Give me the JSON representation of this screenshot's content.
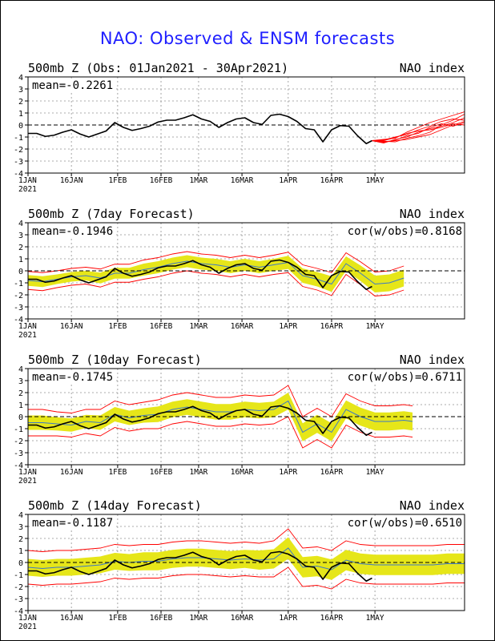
{
  "title": "NAO: Observed & ENSM forecasts",
  "x_ticks": [
    {
      "day": 0,
      "label": "1JAN"
    },
    {
      "day": 15,
      "label": "16JAN"
    },
    {
      "day": 31,
      "label": "1FEB"
    },
    {
      "day": 46,
      "label": "16FEB"
    },
    {
      "day": 59,
      "label": "1MAR"
    },
    {
      "day": 74,
      "label": "16MAR"
    },
    {
      "day": 90,
      "label": "1APR"
    },
    {
      "day": 105,
      "label": "16APR"
    },
    {
      "day": 120,
      "label": "1MAY"
    }
  ],
  "year_label": "2021",
  "y_ticks": [
    4,
    3,
    2,
    1,
    0,
    -1,
    -2,
    -3,
    -4
  ],
  "colors": {
    "title": "#1f1fff",
    "observed": "#000000",
    "forecast_members": "#ff0000",
    "spread_band": "#e6e619",
    "ensemble_mean": "#3c78c8",
    "zero_line": "#000000",
    "grid": "#909090"
  },
  "chart_data": [
    {
      "type": "line",
      "panel_title": "500mb Z (Obs: 01Jan2021 - 30Apr2021)",
      "right_title": "NAO index",
      "mean_label": "mean=-0.2261",
      "cor_label": "",
      "xlim": [
        0,
        151
      ],
      "ylim": [
        -4,
        4
      ],
      "grid": true,
      "series": [
        {
          "name": "",
          "role": "observed",
          "color": "#000000",
          "x": [
            0,
            3,
            6,
            9,
            12,
            15,
            18,
            21,
            24,
            27,
            30,
            33,
            36,
            39,
            42,
            45,
            48,
            51,
            54,
            57,
            60,
            63,
            66,
            69,
            72,
            75,
            78,
            81,
            84,
            87,
            90,
            93,
            96,
            99,
            102,
            105,
            108,
            111,
            114,
            117,
            119
          ],
          "y": [
            -0.7,
            -0.7,
            -0.95,
            -0.85,
            -0.6,
            -0.4,
            -0.75,
            -1.0,
            -0.75,
            -0.5,
            0.2,
            -0.2,
            -0.45,
            -0.3,
            -0.1,
            0.25,
            0.4,
            0.4,
            0.6,
            0.85,
            0.5,
            0.3,
            -0.2,
            0.2,
            0.5,
            0.6,
            0.2,
            0.05,
            0.8,
            0.9,
            0.7,
            0.3,
            -0.3,
            -0.4,
            -1.4,
            -0.4,
            -0.05,
            -0.1,
            -0.9,
            -1.55,
            -1.3
          ]
        }
      ],
      "forecast_ensemble": {
        "x": [
          119,
          123,
          127,
          131,
          135,
          139,
          143,
          147,
          151
        ],
        "members": [
          [
            -1.3,
            -1.5,
            -1.2,
            -1.0,
            -0.6,
            -0.3,
            -0.1,
            0.2,
            0.6
          ],
          [
            -1.3,
            -1.35,
            -1.4,
            -1.1,
            -0.9,
            -0.6,
            0.0,
            0.4,
            0.9
          ],
          [
            -1.3,
            -1.25,
            -1.0,
            -0.8,
            -0.4,
            -0.1,
            0.3,
            0.5,
            0.4
          ],
          [
            -1.3,
            -1.45,
            -1.25,
            -0.9,
            -0.7,
            -0.2,
            0.1,
            -0.1,
            0.2
          ],
          [
            -1.3,
            -1.2,
            -1.1,
            -0.6,
            -0.2,
            0.2,
            0.5,
            0.8,
            1.1
          ],
          [
            -1.3,
            -1.4,
            -1.3,
            -1.2,
            -1.0,
            -0.8,
            -0.4,
            0.0,
            0.3
          ],
          [
            -1.3,
            -1.3,
            -1.05,
            -0.7,
            -0.5,
            -0.4,
            -0.2,
            0.1,
            0.0
          ]
        ]
      }
    },
    {
      "type": "area",
      "panel_title": "500mb Z (7day Forecast)",
      "right_title": "NAO index",
      "mean_label": "mean=-0.1946",
      "cor_label": "cor(w/obs)=0.8168",
      "xlim": [
        0,
        151
      ],
      "ylim": [
        -4,
        4
      ],
      "grid": true,
      "band": {
        "x": [
          0,
          5,
          10,
          15,
          20,
          25,
          30,
          35,
          40,
          45,
          50,
          55,
          60,
          65,
          70,
          75,
          80,
          85,
          90,
          95,
          100,
          105,
          110,
          115,
          120,
          125,
          130
        ],
        "mean": [
          -0.8,
          -0.9,
          -0.7,
          -0.5,
          -0.4,
          -0.6,
          -0.2,
          -0.2,
          0.1,
          0.3,
          0.6,
          0.8,
          0.6,
          0.5,
          0.3,
          0.5,
          0.3,
          0.5,
          0.7,
          -0.4,
          -0.7,
          -1.1,
          0.6,
          -0.2,
          -1.1,
          -1.0,
          -0.6
        ],
        "spread": [
          0.45,
          0.45,
          0.4,
          0.4,
          0.4,
          0.45,
          0.45,
          0.45,
          0.5,
          0.5,
          0.5,
          0.5,
          0.5,
          0.5,
          0.5,
          0.5,
          0.5,
          0.5,
          0.55,
          0.6,
          0.6,
          0.65,
          0.6,
          0.65,
          0.7,
          0.7,
          0.7
        ],
        "outer": [
          0.75,
          0.75,
          0.7,
          0.7,
          0.7,
          0.75,
          0.75,
          0.75,
          0.8,
          0.8,
          0.8,
          0.8,
          0.8,
          0.8,
          0.8,
          0.8,
          0.8,
          0.8,
          0.85,
          0.9,
          0.9,
          0.95,
          0.9,
          0.95,
          1.0,
          1.0,
          1.0
        ]
      },
      "observed": {
        "x": [
          0,
          3,
          6,
          9,
          12,
          15,
          18,
          21,
          24,
          27,
          30,
          33,
          36,
          39,
          42,
          45,
          48,
          51,
          54,
          57,
          60,
          63,
          66,
          69,
          72,
          75,
          78,
          81,
          84,
          87,
          90,
          93,
          96,
          99,
          102,
          105,
          108,
          111,
          114,
          117,
          119
        ],
        "y": [
          -0.7,
          -0.7,
          -0.95,
          -0.85,
          -0.6,
          -0.4,
          -0.75,
          -1.0,
          -0.75,
          -0.5,
          0.2,
          -0.2,
          -0.45,
          -0.3,
          -0.1,
          0.25,
          0.4,
          0.4,
          0.6,
          0.85,
          0.5,
          0.3,
          -0.2,
          0.2,
          0.5,
          0.6,
          0.2,
          0.05,
          0.8,
          0.9,
          0.7,
          0.3,
          -0.3,
          -0.4,
          -1.4,
          -0.4,
          -0.05,
          -0.1,
          -0.9,
          -1.55,
          -1.3
        ]
      }
    },
    {
      "type": "area",
      "panel_title": "500mb Z (10day Forecast)",
      "right_title": "NAO index",
      "mean_label": "mean=-0.1745",
      "cor_label": "cor(w/obs)=0.6711",
      "xlim": [
        0,
        151
      ],
      "ylim": [
        -4,
        4
      ],
      "grid": true,
      "band": {
        "x": [
          0,
          5,
          10,
          15,
          20,
          25,
          30,
          35,
          40,
          45,
          50,
          55,
          60,
          65,
          70,
          75,
          80,
          85,
          90,
          95,
          100,
          105,
          110,
          115,
          120,
          125,
          130,
          133
        ],
        "mean": [
          -0.5,
          -0.5,
          -0.6,
          -0.7,
          -0.4,
          -0.5,
          0.2,
          -0.1,
          0.1,
          0.2,
          0.6,
          0.8,
          0.6,
          0.4,
          0.4,
          0.6,
          0.5,
          0.6,
          1.3,
          -1.3,
          -0.6,
          -1.3,
          0.6,
          0.0,
          -0.4,
          -0.4,
          -0.3,
          -0.4
        ],
        "spread": [
          0.6,
          0.6,
          0.55,
          0.55,
          0.55,
          0.6,
          0.6,
          0.6,
          0.6,
          0.65,
          0.65,
          0.65,
          0.65,
          0.65,
          0.65,
          0.65,
          0.65,
          0.65,
          0.7,
          0.75,
          0.75,
          0.75,
          0.75,
          0.75,
          0.75,
          0.75,
          0.75,
          0.75
        ],
        "outer": [
          1.1,
          1.1,
          1.0,
          1.0,
          1.0,
          1.1,
          1.1,
          1.1,
          1.1,
          1.2,
          1.2,
          1.2,
          1.2,
          1.2,
          1.2,
          1.2,
          1.2,
          1.2,
          1.3,
          1.3,
          1.3,
          1.3,
          1.3,
          1.3,
          1.3,
          1.3,
          1.3,
          1.3
        ]
      },
      "observed": {
        "x": [
          0,
          3,
          6,
          9,
          12,
          15,
          18,
          21,
          24,
          27,
          30,
          33,
          36,
          39,
          42,
          45,
          48,
          51,
          54,
          57,
          60,
          63,
          66,
          69,
          72,
          75,
          78,
          81,
          84,
          87,
          90,
          93,
          96,
          99,
          102,
          105,
          108,
          111,
          114,
          117,
          119
        ],
        "y": [
          -0.7,
          -0.7,
          -0.95,
          -0.85,
          -0.6,
          -0.4,
          -0.75,
          -1.0,
          -0.75,
          -0.5,
          0.2,
          -0.2,
          -0.45,
          -0.3,
          -0.1,
          0.25,
          0.4,
          0.4,
          0.6,
          0.85,
          0.5,
          0.3,
          -0.2,
          0.2,
          0.5,
          0.6,
          0.2,
          0.05,
          0.8,
          0.9,
          0.7,
          0.3,
          -0.3,
          -0.4,
          -1.4,
          -0.4,
          -0.05,
          -0.1,
          -0.9,
          -1.55,
          -1.3
        ]
      }
    },
    {
      "type": "area",
      "panel_title": "500mb Z (14day Forecast)",
      "right_title": "NAO index",
      "mean_label": "mean=-0.1187",
      "cor_label": "cor(w/obs)=0.6510",
      "xlim": [
        0,
        151
      ],
      "ylim": [
        -4,
        4
      ],
      "grid": true,
      "band": {
        "x": [
          0,
          5,
          10,
          15,
          20,
          25,
          30,
          35,
          40,
          45,
          50,
          55,
          60,
          65,
          70,
          75,
          80,
          85,
          90,
          95,
          100,
          105,
          110,
          115,
          120,
          125,
          130,
          135,
          140,
          145,
          151
        ],
        "mean": [
          -0.4,
          -0.5,
          -0.4,
          -0.4,
          -0.3,
          -0.2,
          0.1,
          0.0,
          0.1,
          0.1,
          0.3,
          0.4,
          0.4,
          0.3,
          0.2,
          0.3,
          0.2,
          0.3,
          1.2,
          -0.4,
          -0.3,
          -0.6,
          0.2,
          -0.1,
          -0.2,
          -0.2,
          -0.2,
          -0.2,
          -0.2,
          -0.1,
          -0.1
        ],
        "spread": [
          0.7,
          0.7,
          0.7,
          0.7,
          0.7,
          0.7,
          0.7,
          0.7,
          0.75,
          0.75,
          0.75,
          0.75,
          0.75,
          0.75,
          0.75,
          0.75,
          0.8,
          0.8,
          0.9,
          0.85,
          0.85,
          0.85,
          0.85,
          0.85,
          0.85,
          0.85,
          0.85,
          0.85,
          0.85,
          0.85,
          0.85
        ],
        "outer": [
          1.4,
          1.4,
          1.4,
          1.4,
          1.4,
          1.4,
          1.4,
          1.4,
          1.4,
          1.4,
          1.4,
          1.4,
          1.4,
          1.4,
          1.4,
          1.4,
          1.4,
          1.5,
          1.6,
          1.6,
          1.6,
          1.6,
          1.6,
          1.6,
          1.6,
          1.6,
          1.6,
          1.6,
          1.6,
          1.6,
          1.6
        ]
      },
      "observed": {
        "x": [
          0,
          3,
          6,
          9,
          12,
          15,
          18,
          21,
          24,
          27,
          30,
          33,
          36,
          39,
          42,
          45,
          48,
          51,
          54,
          57,
          60,
          63,
          66,
          69,
          72,
          75,
          78,
          81,
          84,
          87,
          90,
          93,
          96,
          99,
          102,
          105,
          108,
          111,
          114,
          117,
          119
        ],
        "y": [
          -0.7,
          -0.7,
          -0.95,
          -0.85,
          -0.6,
          -0.4,
          -0.75,
          -1.0,
          -0.75,
          -0.5,
          0.2,
          -0.2,
          -0.45,
          -0.3,
          -0.1,
          0.25,
          0.4,
          0.4,
          0.6,
          0.85,
          0.5,
          0.3,
          -0.2,
          0.2,
          0.5,
          0.6,
          0.2,
          0.05,
          0.8,
          0.9,
          0.7,
          0.3,
          -0.3,
          -0.4,
          -1.4,
          -0.4,
          -0.05,
          -0.1,
          -0.9,
          -1.55,
          -1.3
        ]
      }
    }
  ]
}
